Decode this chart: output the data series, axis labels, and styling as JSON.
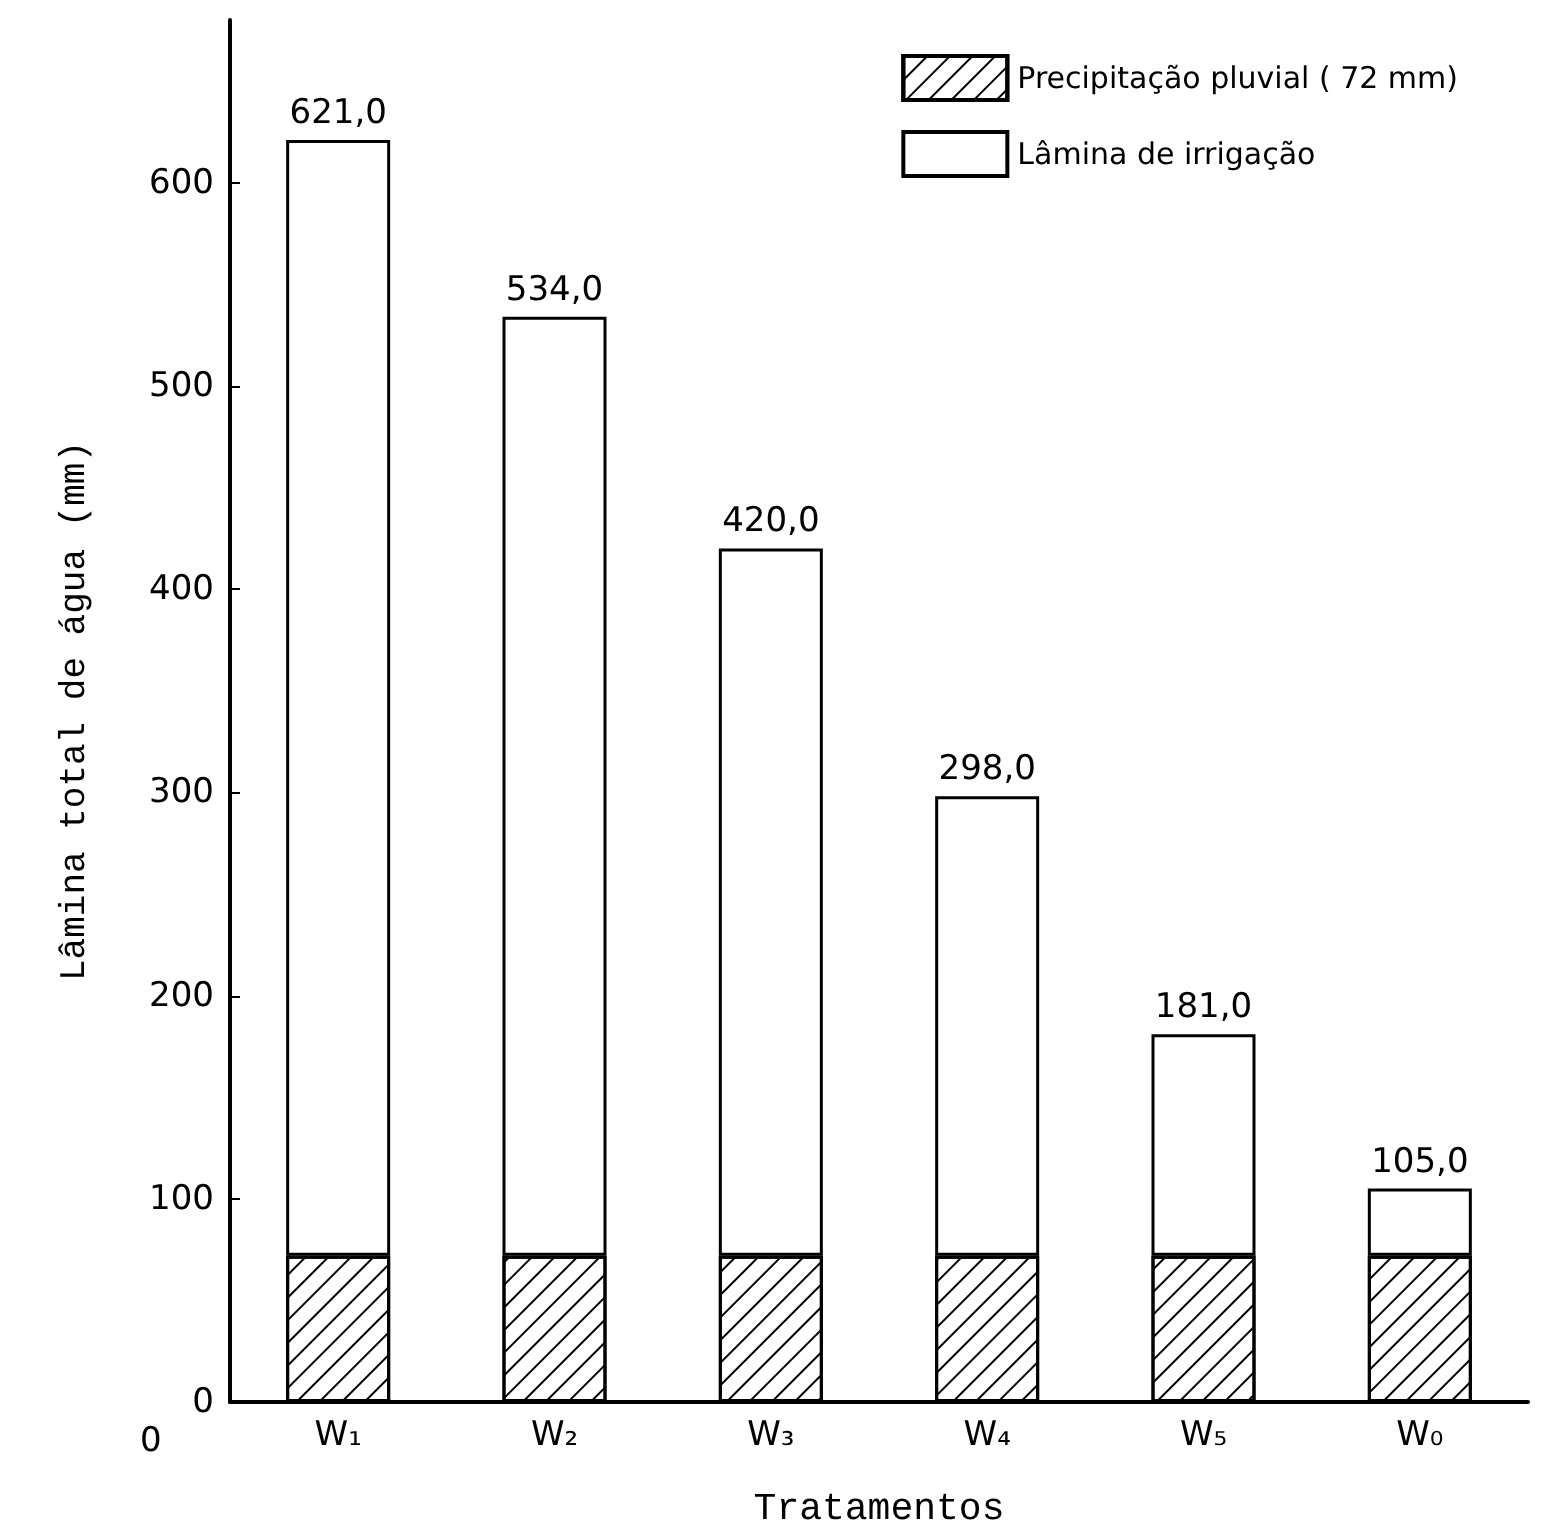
{
  "chart_data": {
    "type": "bar",
    "xlabel": "Tratamentos",
    "ylabel": "Lâmina total de água (mm)",
    "categories": [
      "W₁",
      "W₂",
      "W₃",
      "W₄",
      "W₅",
      "W₀"
    ],
    "stacked": true,
    "series": [
      {
        "name": "Precipitação pluvial ( 72 mm)",
        "color": "#000000",
        "values": [
          72,
          72,
          72,
          72,
          72,
          72
        ]
      },
      {
        "name": "Lâmina de irrigação",
        "color": "#ffffff",
        "values": [
          549,
          462,
          348,
          226,
          109,
          33
        ]
      }
    ],
    "totals": [
      "621,0",
      "534,0",
      "420,0",
      "298,0",
      "181,0",
      "105,0"
    ],
    "ylim": [
      0,
      680
    ],
    "yticks": [
      0,
      100,
      200,
      300,
      400,
      500,
      600
    ],
    "annotations": [
      "0"
    ],
    "grid": false,
    "legend": "top right"
  }
}
